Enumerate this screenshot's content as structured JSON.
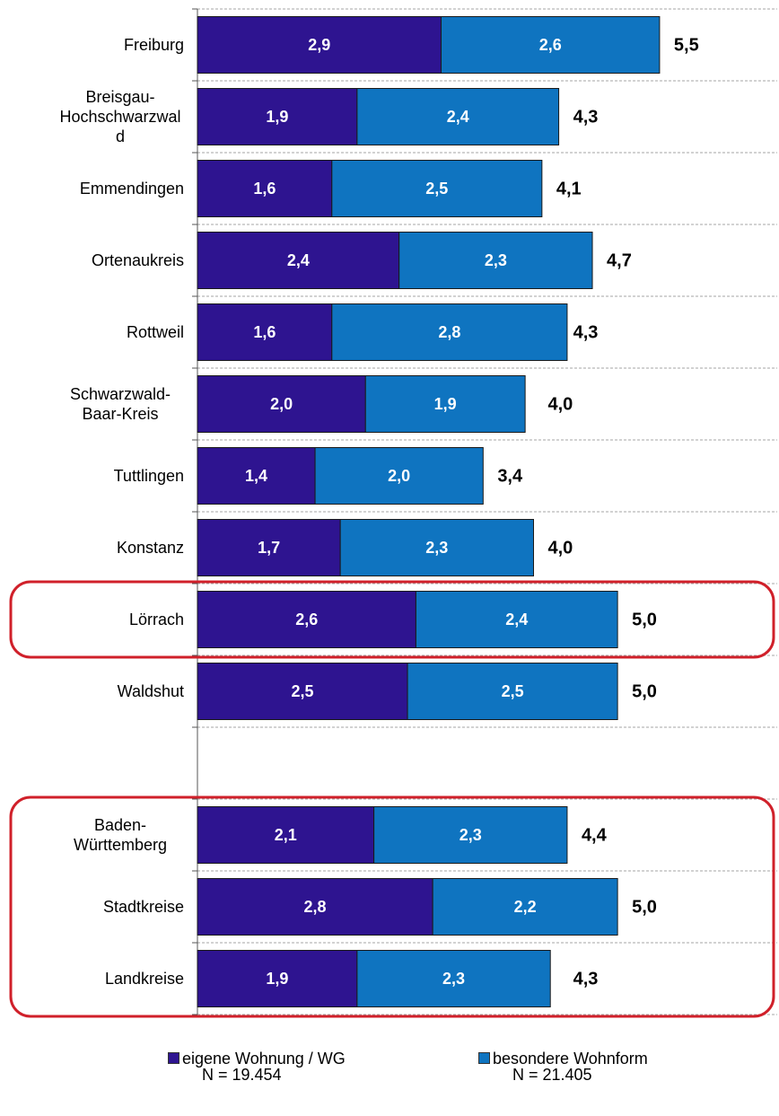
{
  "chart_data": {
    "type": "stacked_barh",
    "categories": [
      "Freiburg",
      "Breisgau-Hochschwarzwald",
      "Emmendingen",
      "Ortenaukreis",
      "Rottweil",
      "Schwarzwald-Baar-Kreis",
      "Tuttlingen",
      "Konstanz",
      "Lörrach",
      "Waldshut",
      null,
      "Baden-Württemberg",
      "Stadtkreise",
      "Landkreise"
    ],
    "series": [
      {
        "name": "eigene Wohnung / WG",
        "note": "N = 19.454",
        "color": "#2e1490",
        "values": [
          2.9,
          1.9,
          1.6,
          2.4,
          1.6,
          2.0,
          1.4,
          1.7,
          2.6,
          2.5,
          null,
          2.1,
          2.8,
          1.9
        ],
        "value_labels": [
          "2,9",
          "1,9",
          "1,6",
          "2,4",
          "1,6",
          "2,0",
          "1,4",
          "1,7",
          "2,6",
          "2,5",
          null,
          "2,1",
          "2,8",
          "1,9"
        ]
      },
      {
        "name": "besondere Wohnform",
        "note": "N = 21.405",
        "color": "#0f74c0",
        "values": [
          2.6,
          2.4,
          2.5,
          2.3,
          2.8,
          1.9,
          2.0,
          2.3,
          2.4,
          2.5,
          null,
          2.3,
          2.2,
          2.3
        ],
        "value_labels": [
          "2,6",
          "2,4",
          "2,5",
          "2,3",
          "2,8",
          "1,9",
          "2,0",
          "2,3",
          "2,4",
          "2,5",
          null,
          "2,3",
          "2,2",
          "2,3"
        ]
      }
    ],
    "totals": {
      "values": [
        5.5,
        4.3,
        4.1,
        4.7,
        4.3,
        4.0,
        3.4,
        4.0,
        5.0,
        5.0,
        null,
        4.4,
        5.0,
        4.3
      ],
      "value_labels": [
        "5,5",
        "4,3",
        "4,1",
        "4,7",
        "4,3",
        "4,0",
        "3,4",
        "4,0",
        "5,0",
        "5,0",
        null,
        "4,4",
        "5,0",
        "4,3"
      ]
    },
    "xlim": [
      0,
      6.9
    ]
  }
}
